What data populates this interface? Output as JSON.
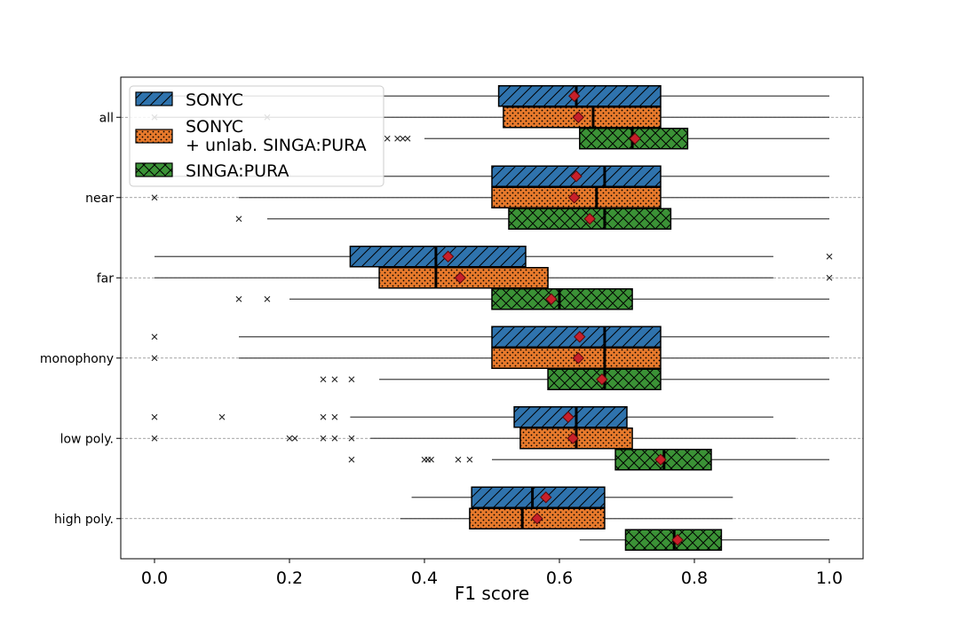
{
  "chart_data": {
    "type": "boxplot",
    "orientation": "horizontal",
    "xlabel": "F1 score",
    "ylabel": "",
    "xlim": [
      -0.05,
      1.05
    ],
    "xticks": [
      "0.0",
      "0.2",
      "0.4",
      "0.6",
      "0.8",
      "1.0"
    ],
    "categories": [
      "all",
      "near",
      "far",
      "monophony",
      "low poly.",
      "high poly."
    ],
    "legend_position": "top-left",
    "grid": "horizontal dashed lines at category centers",
    "series": [
      {
        "name": "SONYC",
        "color": "#2f73ad",
        "hatch": "diagonal",
        "boxes": [
          {
            "whislo": 0.0,
            "q1": 0.51,
            "med": 0.625,
            "q3": 0.75,
            "whishi": 1.0,
            "mean": 0.622,
            "fliers": []
          },
          {
            "whislo": 0.0,
            "q1": 0.5,
            "med": 0.667,
            "q3": 0.75,
            "whishi": 1.0,
            "mean": 0.625,
            "fliers": []
          },
          {
            "whislo": 0.0,
            "q1": 0.29,
            "med": 0.417,
            "q3": 0.55,
            "whishi": 0.917,
            "mean": 0.435,
            "fliers": [
              1.0
            ]
          },
          {
            "whislo": 0.125,
            "q1": 0.5,
            "med": 0.667,
            "q3": 0.75,
            "whishi": 1.0,
            "mean": 0.63,
            "fliers": [
              0.0
            ]
          },
          {
            "whislo": 0.29,
            "q1": 0.533,
            "med": 0.625,
            "q3": 0.7,
            "whishi": 0.917,
            "mean": 0.613,
            "fliers": [
              0.0,
              0.1,
              0.25,
              0.267
            ]
          },
          {
            "whislo": 0.381,
            "q1": 0.47,
            "med": 0.56,
            "q3": 0.667,
            "whishi": 0.857,
            "mean": 0.58,
            "fliers": []
          }
        ]
      },
      {
        "name": "SONYC\n+ unlab. SINGA:PURA",
        "color": "#e87a2c",
        "hatch": "dots",
        "boxes": [
          {
            "whislo": 0.0,
            "q1": 0.517,
            "med": 0.65,
            "q3": 0.75,
            "whishi": 1.0,
            "mean": 0.628,
            "fliers": [
              0.0,
              0.167
            ]
          },
          {
            "whislo": 0.125,
            "q1": 0.5,
            "med": 0.655,
            "q3": 0.75,
            "whishi": 1.0,
            "mean": 0.622,
            "fliers": [
              0.0
            ]
          },
          {
            "whislo": 0.0,
            "q1": 0.333,
            "med": 0.417,
            "q3": 0.583,
            "whishi": 0.917,
            "mean": 0.453,
            "fliers": [
              1.0
            ]
          },
          {
            "whislo": 0.125,
            "q1": 0.5,
            "med": 0.667,
            "q3": 0.75,
            "whishi": 1.0,
            "mean": 0.628,
            "fliers": [
              0.0
            ]
          },
          {
            "whislo": 0.32,
            "q1": 0.542,
            "med": 0.625,
            "q3": 0.708,
            "whishi": 0.95,
            "mean": 0.62,
            "fliers": [
              0.0,
              0.2,
              0.208,
              0.25,
              0.267,
              0.292
            ]
          },
          {
            "whislo": 0.364,
            "q1": 0.467,
            "med": 0.545,
            "q3": 0.667,
            "whishi": 0.857,
            "mean": 0.567,
            "fliers": []
          }
        ]
      },
      {
        "name": "SINGA:PURA",
        "color": "#3b9236",
        "hatch": "crosshatch",
        "boxes": [
          {
            "whislo": 0.4,
            "q1": 0.63,
            "med": 0.708,
            "q3": 0.79,
            "whishi": 1.0,
            "mean": 0.712,
            "fliers": [
              0.345,
              0.36,
              0.368,
              0.375
            ]
          },
          {
            "whislo": 0.167,
            "q1": 0.525,
            "med": 0.667,
            "q3": 0.765,
            "whishi": 1.0,
            "mean": 0.645,
            "fliers": [
              0.125
            ]
          },
          {
            "whislo": 0.2,
            "q1": 0.5,
            "med": 0.6,
            "q3": 0.708,
            "whishi": 1.0,
            "mean": 0.588,
            "fliers": [
              0.125,
              0.167
            ]
          },
          {
            "whislo": 0.333,
            "q1": 0.583,
            "med": 0.667,
            "q3": 0.75,
            "whishi": 1.0,
            "mean": 0.663,
            "fliers": [
              0.25,
              0.267,
              0.292
            ]
          },
          {
            "whislo": 0.5,
            "q1": 0.683,
            "med": 0.755,
            "q3": 0.825,
            "whishi": 1.0,
            "mean": 0.75,
            "fliers": [
              0.292,
              0.4,
              0.405,
              0.41,
              0.45,
              0.467
            ]
          },
          {
            "whislo": 0.63,
            "q1": 0.698,
            "med": 0.77,
            "q3": 0.84,
            "whishi": 1.0,
            "mean": 0.775,
            "fliers": []
          }
        ]
      }
    ],
    "mean_marker": {
      "shape": "diamond",
      "color": "#c8202a"
    }
  }
}
